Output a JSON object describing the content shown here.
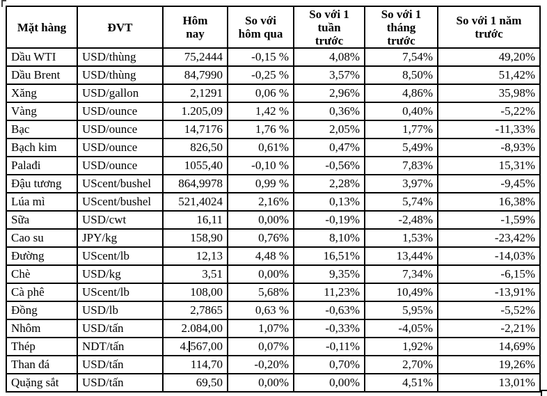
{
  "document": {
    "colors": {
      "border": "#000000",
      "text": "#000000",
      "background": "#ffffff"
    },
    "table": {
      "columns": [
        "Mặt hàng",
        "ĐVT",
        "Hôm\nnay",
        "So với\nhôm qua",
        "So với 1\ntuần\ntrước",
        "So với 1\ntháng\ntrước",
        "So với 1 năm\ntrước"
      ],
      "rows": [
        [
          "Dầu WTI",
          "USD/thùng",
          "75,2444",
          "-0,15 %",
          "4,08%",
          "7,54%",
          "49,20%"
        ],
        [
          "Dầu Brent",
          "USD/thùng",
          "84,7990",
          "-0,25 %",
          "3,57%",
          "8,50%",
          "51,42%"
        ],
        [
          "Xăng",
          "USD/gallon",
          "2,1291",
          "0,06 %",
          "2,96%",
          "4,86%",
          "35,98%"
        ],
        [
          "Vàng",
          "USD/ounce",
          "1.205,09",
          "1,42 %",
          "0,36%",
          "0,40%",
          "-5,22%"
        ],
        [
          "Bạc",
          "USD/ounce",
          "14,7176",
          "1,76 %",
          "2,05%",
          "1,77%",
          "-11,33%"
        ],
        [
          "Bạch kim",
          "USD/ounce",
          "826,50",
          "0,61%",
          "0,47%",
          "5,49%",
          "-8,93%"
        ],
        [
          "Palađi",
          "USD/ounce",
          "1055,40",
          "-0,10 %",
          "-0,56%",
          "7,83%",
          "15,31%"
        ],
        [
          "Đậu tương",
          "UScent/bushel",
          "864,9978",
          "0,99 %",
          "2,28%",
          "3,97%",
          "-9,45%"
        ],
        [
          "Lúa mì",
          "UScent/bushel",
          "521,4024",
          "2,16%",
          "0,13%",
          "5,74%",
          "16,38%"
        ],
        [
          "Sữa",
          "USD/cwt",
          "16,11",
          "0,00%",
          "-0,19%",
          "-2,48%",
          "-1,59%"
        ],
        [
          "Cao su",
          "JPY/kg",
          "158,90",
          "0,76%",
          "8,10%",
          "1,53%",
          "-23,42%"
        ],
        [
          "Đường",
          "UScent/lb",
          "12,13",
          "4,48 %",
          "16,51%",
          "13,44%",
          "-14,03%"
        ],
        [
          "Chè",
          "USD/kg",
          "3,51",
          "0,00%",
          "9,35%",
          "7,34%",
          "-6,15%"
        ],
        [
          "Cà phê",
          "UScent/lb",
          "108,00",
          "5,68%",
          "11,23%",
          "10,49%",
          "-13,91%"
        ],
        [
          "Đồng",
          "USD/lb",
          "2,7865",
          "0,63 %",
          "-0,63%",
          "5,95%",
          "-5,52%"
        ],
        [
          "Nhôm",
          "USD/tấn",
          "2.084,00",
          "1,07%",
          "-0,33%",
          "-4,05%",
          "-2,21%"
        ],
        [
          "Thép",
          "NDT/tấn",
          "4.567,00",
          "0,07%",
          "-0,11%",
          "1,92%",
          "14,69%"
        ],
        [
          "Than đá",
          "USD/tấn",
          "114,70",
          "-0,20%",
          "0,70%",
          "2,70%",
          "19,26%"
        ],
        [
          "Quặng sắt",
          "USD/tấn",
          "69,50",
          "0,00%",
          "0,00%",
          "4,51%",
          "13,01%"
        ]
      ],
      "text_cursor": {
        "row_index": 16,
        "col_index": 2,
        "after_text": "4."
      }
    }
  }
}
